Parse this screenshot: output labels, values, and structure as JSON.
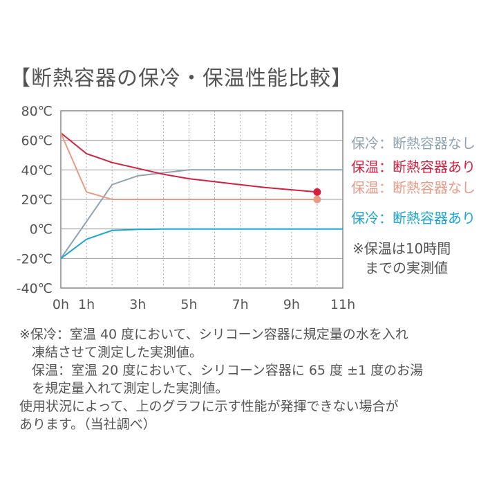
{
  "title": "【断熱容器の保冷・保温性能比較】",
  "chart_data": {
    "type": "line",
    "x_ticks": [
      "0h",
      "1h",
      "3h",
      "5h",
      "7h",
      "9h",
      "11h"
    ],
    "x_tick_values": [
      0,
      1,
      3,
      5,
      7,
      9,
      11
    ],
    "xlim": [
      0,
      11
    ],
    "y_ticks": [
      "80℃",
      "60℃",
      "40℃",
      "20℃",
      "0℃",
      "-20℃",
      "-40℃"
    ],
    "y_tick_values": [
      80,
      60,
      40,
      20,
      0,
      -20,
      -40
    ],
    "ylim": [
      -40,
      80
    ],
    "grid": true,
    "series": [
      {
        "name": "保冷：断熱容器なし",
        "color": "#8fa3b1",
        "points": [
          [
            0,
            -20
          ],
          [
            1,
            5
          ],
          [
            2,
            30
          ],
          [
            3,
            36
          ],
          [
            4,
            38
          ],
          [
            5,
            40
          ],
          [
            6,
            40
          ],
          [
            7,
            40
          ],
          [
            8,
            40
          ],
          [
            9,
            40
          ],
          [
            10,
            40
          ],
          [
            11,
            40
          ]
        ]
      },
      {
        "name": "保温：断熱容器あり",
        "color": "#d2203f",
        "points": [
          [
            0,
            65
          ],
          [
            1,
            51
          ],
          [
            2,
            45
          ],
          [
            3,
            41
          ],
          [
            4,
            37
          ],
          [
            5,
            34
          ],
          [
            6,
            32
          ],
          [
            7,
            30
          ],
          [
            8,
            28
          ],
          [
            9,
            26.5
          ],
          [
            10,
            25
          ]
        ],
        "end_marker": true
      },
      {
        "name": "保温：断熱容器なし",
        "color": "#eb9a86",
        "points": [
          [
            0,
            65
          ],
          [
            1,
            25
          ],
          [
            2,
            20
          ],
          [
            3,
            20
          ],
          [
            4,
            20
          ],
          [
            5,
            20
          ],
          [
            6,
            20
          ],
          [
            7,
            20
          ],
          [
            8,
            20
          ],
          [
            9,
            20
          ],
          [
            10,
            20
          ]
        ],
        "end_marker": true
      },
      {
        "name": "保冷：断熱容器あり",
        "color": "#1aa6d2",
        "points": [
          [
            0,
            -20
          ],
          [
            1,
            -7
          ],
          [
            2,
            -1
          ],
          [
            3,
            -0.3
          ],
          [
            4,
            0
          ],
          [
            5,
            0
          ],
          [
            6,
            0
          ],
          [
            7,
            0
          ],
          [
            8,
            0
          ],
          [
            9,
            0
          ],
          [
            10,
            0
          ],
          [
            11,
            0
          ]
        ]
      }
    ],
    "annotation": [
      "※保温は10時間",
      "までの実測値"
    ]
  },
  "notes": {
    "line1": "※保冷：室温 40 度において、シリコーン容器に規定量の水を入れ",
    "line2": "凍結させて測定した実測値。",
    "line3": "保温：室温 20 度において、シリコーン容器に 65 度 ±1 度のお湯",
    "line4": "を規定量入れて測定した実測値。",
    "line5": "使用状況によって、上のグラフに示す性能が発揮できない場合が",
    "line6": "あります。（当社調べ）"
  }
}
